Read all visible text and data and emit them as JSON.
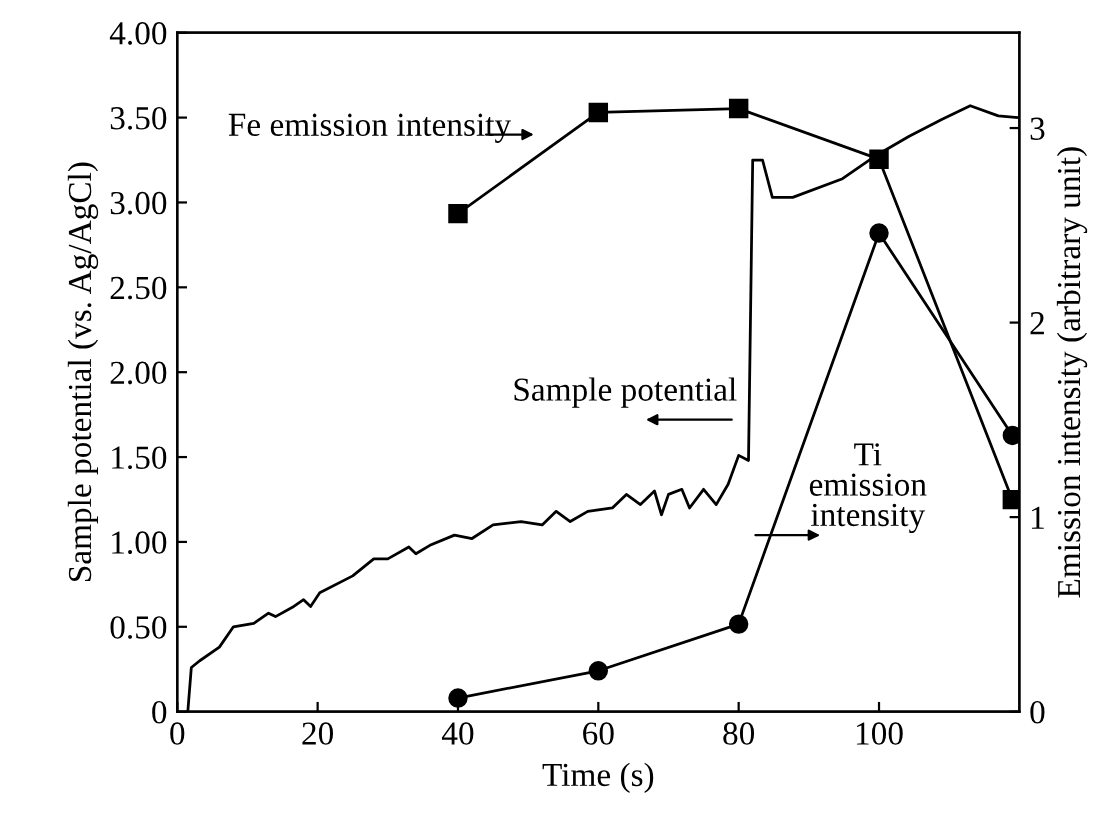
{
  "chart_data": {
    "type": "line",
    "xlabel": "Time (s)",
    "ylabel": "Sample potential (vs. Ag/AgCl)",
    "y2label": "Emission intensity (arbitrary unit)",
    "xlim": [
      0,
      120
    ],
    "xticks": [
      0,
      20,
      40,
      60,
      80,
      100
    ],
    "ylim": [
      0,
      4
    ],
    "yticks": [
      0,
      {
        "value": 0.5,
        "label": "0.50"
      },
      {
        "value": 1,
        "label": "1.00"
      },
      {
        "value": 1.5,
        "label": "1.50"
      },
      {
        "value": 2,
        "label": "2.00"
      },
      {
        "value": 2.5,
        "label": "2.50"
      },
      {
        "value": 3,
        "label": "3.00"
      },
      {
        "value": 3.5,
        "label": "3.50"
      },
      {
        "value": 4,
        "label": "4.00"
      }
    ],
    "y2lim": [
      0,
      3.49
    ],
    "y2ticks": [
      0,
      1,
      2,
      3
    ],
    "grid": false,
    "legend": false,
    "series": [
      {
        "color": "#000000",
        "marker": "none",
        "x": [
          1.5,
          2,
          3.2,
          6,
          8,
          10.9,
          13,
          14,
          16.6,
          18,
          19,
          20.3,
          25,
          28,
          30,
          33,
          34,
          36,
          39.5,
          42,
          45,
          49,
          52,
          54,
          56,
          58.5,
          62,
          64,
          66,
          68,
          69,
          70,
          71.9,
          73,
          75,
          76.8,
          78.5,
          80,
          81.4,
          82,
          83.4,
          84.8,
          87.7,
          94.8,
          99.7,
          104.3,
          109,
          113,
          117,
          119.8
        ],
        "values": [
          0,
          0.26,
          0.3,
          0.38,
          0.5,
          0.52,
          0.58,
          0.56,
          0.62,
          0.66,
          0.62,
          0.7,
          0.8,
          0.9,
          0.9,
          0.97,
          0.93,
          0.98,
          1.04,
          1.02,
          1.1,
          1.12,
          1.1,
          1.18,
          1.12,
          1.18,
          1.2,
          1.28,
          1.22,
          1.3,
          1.16,
          1.28,
          1.31,
          1.2,
          1.31,
          1.22,
          1.34,
          1.51,
          1.48,
          3.25,
          3.25,
          3.03,
          3.03,
          3.14,
          3.28,
          3.39,
          3.49,
          3.57,
          3.51,
          3.5
        ]
      },
      {
        "color": "#000000",
        "marker": "square",
        "axis": "y2",
        "x": [
          40,
          60,
          80,
          100,
          119
        ],
        "values": [
          2.56,
          3.08,
          3.1,
          2.84,
          1.09
        ]
      },
      {
        "color": "#000000",
        "marker": "circle",
        "axis": "y2",
        "x": [
          40,
          60,
          80,
          100,
          119
        ],
        "values": [
          0.07,
          0.21,
          0.45,
          2.46,
          1.42
        ]
      }
    ],
    "annotations": [
      "Fe emission intensity",
      "Sample potential",
      "Ti\nemission\nintensity"
    ]
  }
}
